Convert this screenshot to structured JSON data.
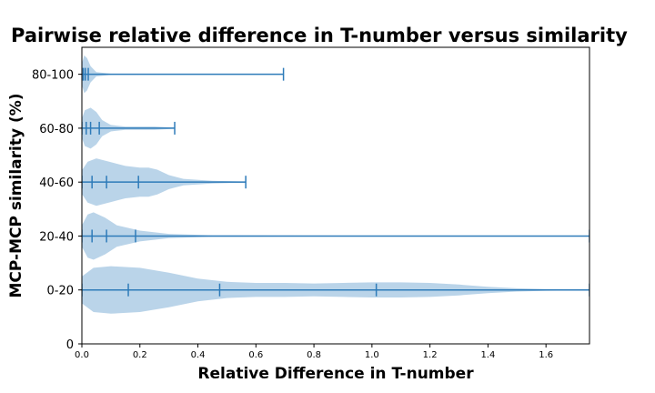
{
  "chart_data": {
    "type": "violin",
    "title": "Pairwise relative difference in T-number versus similarity",
    "xlabel": "Relative Difference in T-number",
    "ylabel": "MCP-MCP similarity (%)",
    "xlim": [
      0,
      1.75
    ],
    "ylim": [
      0,
      5.5
    ],
    "xticks": [
      "0.0",
      "0.2",
      "0.4",
      "0.6",
      "0.8",
      "1.0",
      "1.2",
      "1.4",
      "1.6"
    ],
    "yticks": [
      "0",
      "0-20",
      "20-40",
      "40-60",
      "60-80",
      "80-100"
    ],
    "fill_color": "#a9c9e4",
    "line_color": "#2e7bb9",
    "orientation": "horizontal",
    "groups": [
      {
        "label": "0-20",
        "position": 1,
        "extent": [
          0,
          1.75
        ],
        "quantiles": [
          0.16,
          0.475,
          1.015
        ],
        "profile": [
          [
            0,
            0.25
          ],
          [
            0.04,
            0.41
          ],
          [
            0.1,
            0.44
          ],
          [
            0.2,
            0.41
          ],
          [
            0.3,
            0.32
          ],
          [
            0.4,
            0.21
          ],
          [
            0.5,
            0.15
          ],
          [
            0.6,
            0.13
          ],
          [
            0.7,
            0.13
          ],
          [
            0.8,
            0.12
          ],
          [
            0.9,
            0.13
          ],
          [
            1.0,
            0.14
          ],
          [
            1.1,
            0.14
          ],
          [
            1.2,
            0.13
          ],
          [
            1.3,
            0.1
          ],
          [
            1.4,
            0.06
          ],
          [
            1.5,
            0.03
          ],
          [
            1.6,
            0.015
          ],
          [
            1.75,
            0.008
          ]
        ]
      },
      {
        "label": "20-40",
        "position": 2,
        "extent": [
          0,
          1.75
        ],
        "quantiles": [
          0.035,
          0.085,
          0.185
        ],
        "profile": [
          [
            0,
            0.2
          ],
          [
            0.02,
            0.4
          ],
          [
            0.04,
            0.44
          ],
          [
            0.08,
            0.34
          ],
          [
            0.12,
            0.2
          ],
          [
            0.2,
            0.1
          ],
          [
            0.3,
            0.04
          ],
          [
            0.45,
            0.015
          ],
          [
            0.7,
            0.01
          ],
          [
            1.0,
            0.008
          ],
          [
            1.75,
            0.008
          ]
        ]
      },
      {
        "label": "40-60",
        "position": 3,
        "extent": [
          0,
          0.565
        ],
        "quantiles": [
          0.035,
          0.085,
          0.195
        ],
        "profile": [
          [
            0,
            0.22
          ],
          [
            0.02,
            0.38
          ],
          [
            0.05,
            0.44
          ],
          [
            0.1,
            0.37
          ],
          [
            0.15,
            0.3
          ],
          [
            0.2,
            0.27
          ],
          [
            0.23,
            0.27
          ],
          [
            0.26,
            0.23
          ],
          [
            0.3,
            0.13
          ],
          [
            0.35,
            0.06
          ],
          [
            0.45,
            0.025
          ],
          [
            0.565,
            0.01
          ]
        ]
      },
      {
        "label": "60-80",
        "position": 4,
        "extent": [
          0,
          0.32
        ],
        "quantiles": [
          0.015,
          0.03,
          0.06
        ],
        "profile": [
          [
            0,
            0.18
          ],
          [
            0.01,
            0.33
          ],
          [
            0.03,
            0.38
          ],
          [
            0.05,
            0.3
          ],
          [
            0.07,
            0.15
          ],
          [
            0.1,
            0.06
          ],
          [
            0.15,
            0.03
          ],
          [
            0.25,
            0.03
          ],
          [
            0.32,
            0.01
          ]
        ]
      },
      {
        "label": "80-100",
        "position": 5,
        "extent": [
          0,
          0.695
        ],
        "quantiles": [
          0.005,
          0.012,
          0.022
        ],
        "profile": [
          [
            0,
            0.2
          ],
          [
            0.008,
            0.35
          ],
          [
            0.018,
            0.3
          ],
          [
            0.03,
            0.15
          ],
          [
            0.05,
            0.04
          ],
          [
            0.1,
            0.01
          ],
          [
            0.3,
            0.006
          ],
          [
            0.695,
            0.006
          ]
        ]
      }
    ]
  }
}
